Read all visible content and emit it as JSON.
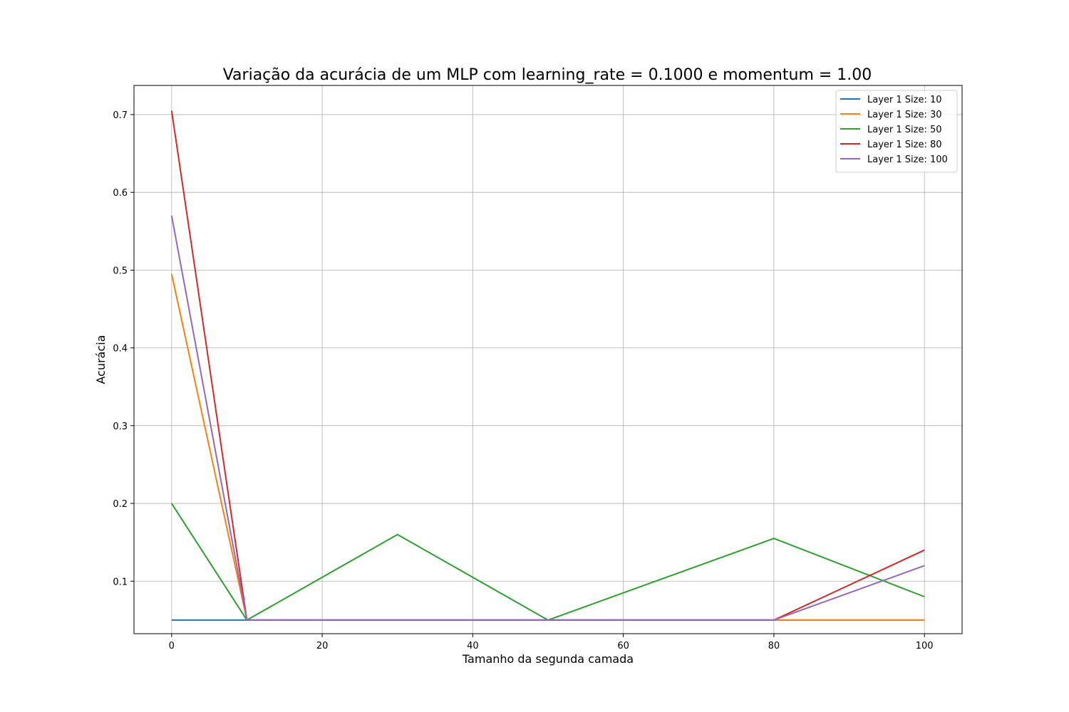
{
  "chart_data": {
    "type": "line",
    "title": "Variação da acurácia de um MLP com learning_rate = 0.1000 e momentum = 1.00",
    "xlabel": "Tamanho da segunda camada",
    "ylabel": "Acurácia",
    "xlim": [
      -5,
      105
    ],
    "ylim": [
      0.0325,
      0.7375
    ],
    "x": [
      0,
      10,
      30,
      50,
      80,
      100
    ],
    "xticks": [
      0,
      20,
      40,
      60,
      80,
      100
    ],
    "xtick_labels": [
      "0",
      "20",
      "40",
      "60",
      "80",
      "100"
    ],
    "yticks": [
      0.1,
      0.2,
      0.3,
      0.4,
      0.5,
      0.6,
      0.7
    ],
    "ytick_labels": [
      "0.1",
      "0.2",
      "0.3",
      "0.4",
      "0.5",
      "0.6",
      "0.7"
    ],
    "grid": true,
    "legend_position": "top-right",
    "series": [
      {
        "name": "Layer 1 Size: 10",
        "color": "#1f77b4",
        "values": [
          0.05,
          0.05,
          0.05,
          0.05,
          0.05,
          0.05
        ]
      },
      {
        "name": "Layer 1 Size: 30",
        "color": "#ff7f0e",
        "values": [
          0.495,
          0.05,
          0.05,
          0.05,
          0.05,
          0.05
        ]
      },
      {
        "name": "Layer 1 Size: 50",
        "color": "#2ca02c",
        "values": [
          0.2,
          0.05,
          0.16,
          0.05,
          0.155,
          0.08
        ]
      },
      {
        "name": "Layer 1 Size: 80",
        "color": "#d62728",
        "values": [
          0.705,
          0.05,
          0.05,
          0.05,
          0.05,
          0.14
        ]
      },
      {
        "name": "Layer 1 Size: 100",
        "color": "#9467bd",
        "values": [
          0.57,
          0.05,
          0.05,
          0.05,
          0.05,
          0.12
        ]
      }
    ]
  }
}
